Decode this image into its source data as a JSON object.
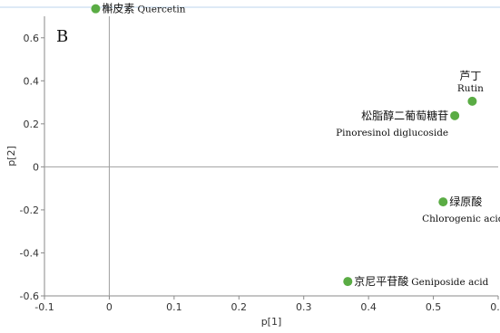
{
  "chart_data": {
    "type": "scatter",
    "panel_label": "B",
    "xlabel": "p[1]",
    "ylabel": "p[2]",
    "xlim": [
      -0.1,
      0.6
    ],
    "ylim": [
      -0.6,
      0.7
    ],
    "x_ticks": [
      "-0.1",
      "0",
      "0.1",
      "0.2",
      "0.3",
      "0.4",
      "0.5",
      "0.6"
    ],
    "y_ticks": [
      "-0.6",
      "-0.4",
      "-0.2",
      "0",
      "0.2",
      "0.4",
      "0.6"
    ],
    "point_color": "#5aac44",
    "points": [
      {
        "name_cn": "槲皮素",
        "name_en": "Quercetin",
        "x": -0.021,
        "y": 0.735,
        "label_layout": "inline-right"
      },
      {
        "name_cn": "芦丁",
        "name_en": "Rutin",
        "x": 0.56,
        "y": 0.305,
        "label_layout": "stacked-above"
      },
      {
        "name_cn": "松脂醇二葡萄糖苷",
        "name_en": "Pinoresinol diglucoside",
        "x": 0.533,
        "y": 0.238,
        "label_layout": "stacked-left"
      },
      {
        "name_cn": "绿原酸",
        "name_en": "Chlorogenic acid",
        "x": 0.515,
        "y": -0.163,
        "label_layout": "stacked-right"
      },
      {
        "name_cn": "京尼平苷酸",
        "name_en": "Geniposide acid",
        "x": 0.368,
        "y": -0.533,
        "label_layout": "inline-right"
      }
    ]
  }
}
